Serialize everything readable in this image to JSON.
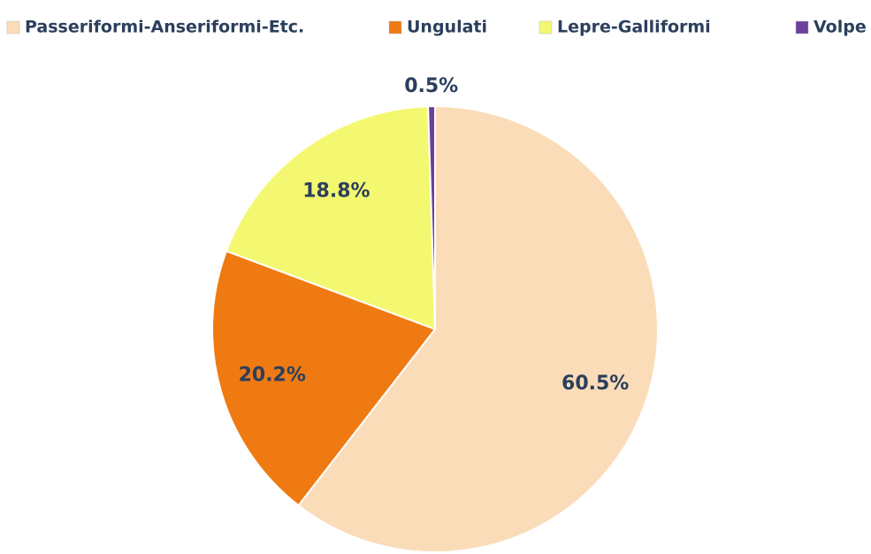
{
  "chart_data": {
    "type": "pie",
    "categories": [
      "Passeriformi-Anseriformi-Etc.",
      "Ungulati",
      "Lepre-Galliformi",
      "Volpe"
    ],
    "values": [
      60.5,
      20.2,
      18.8,
      0.5
    ],
    "value_labels": [
      "60.5%",
      "20.2%",
      "18.8%",
      "0.5%"
    ],
    "colors": [
      "#fbdcb8",
      "#ef7a12",
      "#f4f870",
      "#6b3f9c"
    ]
  }
}
